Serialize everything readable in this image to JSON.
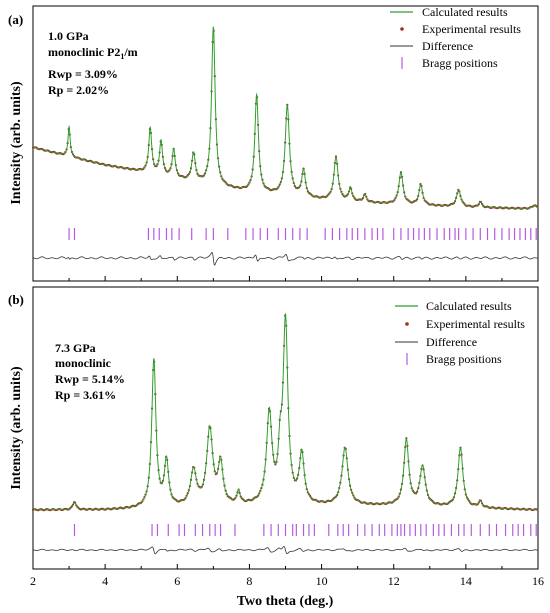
{
  "chart_data": [
    {
      "type": "line",
      "panel_label": "(a)",
      "annotations": [
        "1.0 GPa",
        "monoclinic P2",
        "1",
        "/m",
        "Rwp = 3.09%",
        "Rp = 2.02%"
      ],
      "ylabel": "Intensity (arb. units)",
      "xlim": [
        2,
        16
      ],
      "grid": false,
      "legend": {
        "placement": "top-right",
        "entries": [
          "Calculated results",
          "Experimental results",
          "Difference",
          "Bragg positions"
        ]
      },
      "series": [
        {
          "name": "Calculated results",
          "style": "line",
          "color": "#2e9e2e"
        },
        {
          "name": "Experimental results",
          "style": "dots",
          "color": "#a52a2a"
        },
        {
          "name": "Difference",
          "style": "line",
          "color": "#333333"
        },
        {
          "name": "Bragg positions",
          "style": "ticks",
          "color": "#b65be0"
        }
      ],
      "profile": {
        "background": [
          [
            2.0,
            33
          ],
          [
            3.0,
            28
          ],
          [
            4.0,
            23.5
          ],
          [
            5.0,
            20
          ],
          [
            6.0,
            16
          ],
          [
            7.0,
            12
          ],
          [
            8.0,
            9
          ],
          [
            9.0,
            7
          ],
          [
            10.0,
            5
          ],
          [
            12.0,
            2.5
          ],
          [
            14.0,
            1
          ],
          [
            16.0,
            0
          ]
        ],
        "peaks": [
          [
            3.0,
            16,
            0.035
          ],
          [
            5.25,
            24,
            0.05
          ],
          [
            5.55,
            18,
            0.05
          ],
          [
            5.9,
            15,
            0.05
          ],
          [
            6.45,
            15,
            0.06
          ],
          [
            7.0,
            85,
            0.06
          ],
          [
            8.2,
            52,
            0.06
          ],
          [
            9.05,
            48,
            0.07
          ],
          [
            9.5,
            14,
            0.06
          ],
          [
            10.4,
            23,
            0.07
          ],
          [
            10.8,
            7,
            0.05
          ],
          [
            11.2,
            4,
            0.05
          ],
          [
            12.2,
            17,
            0.07
          ],
          [
            12.75,
            11,
            0.06
          ],
          [
            13.8,
            9,
            0.07
          ],
          [
            14.4,
            3,
            0.05
          ],
          [
            15.9,
            2,
            0.07
          ]
        ],
        "ymax": 100
      },
      "bragg_positions": [
        3.0,
        3.15,
        5.2,
        5.35,
        5.5,
        5.7,
        5.85,
        6.05,
        6.4,
        6.8,
        7.0,
        7.4,
        7.9,
        8.1,
        8.3,
        8.5,
        8.8,
        9.0,
        9.2,
        9.4,
        9.6,
        10.1,
        10.3,
        10.5,
        10.7,
        10.85,
        11.0,
        11.2,
        11.4,
        11.55,
        11.7,
        12.0,
        12.2,
        12.4,
        12.55,
        12.7,
        12.85,
        13.0,
        13.2,
        13.4,
        13.55,
        13.7,
        13.8,
        14.0,
        14.2,
        14.4,
        14.6,
        14.8,
        15.0,
        15.2,
        15.35,
        15.5,
        15.65,
        15.8,
        15.95
      ]
    },
    {
      "type": "line",
      "panel_label": "(b)",
      "annotations": [
        "7.3 GPa",
        "monoclinic",
        "Rwp = 5.14%",
        "Rp = 3.61%"
      ],
      "ylabel": "Intensity (arb. units)",
      "xlabel": "Two theta (deg.)",
      "xlim": [
        2,
        16
      ],
      "xticks": [
        2,
        4,
        6,
        8,
        10,
        12,
        14,
        16
      ],
      "grid": false,
      "legend": {
        "placement": "top-right",
        "entries": [
          "Calculated results",
          "Experimental results",
          "Difference",
          "Bragg positions"
        ]
      },
      "series": [
        {
          "name": "Calculated results",
          "style": "line",
          "color": "#2e9e2e"
        },
        {
          "name": "Experimental results",
          "style": "dots",
          "color": "#a52a2a"
        },
        {
          "name": "Difference",
          "style": "line",
          "color": "#333333"
        },
        {
          "name": "Bragg positions",
          "style": "ticks",
          "color": "#b65be0"
        }
      ],
      "profile": {
        "background": [
          [
            2.0,
            1
          ],
          [
            4.0,
            1
          ],
          [
            5.0,
            1.5
          ],
          [
            8.0,
            3
          ],
          [
            10.0,
            3
          ],
          [
            12.0,
            3
          ],
          [
            14.0,
            2
          ],
          [
            16.0,
            1
          ]
        ],
        "peaks": [
          [
            3.15,
            4,
            0.05
          ],
          [
            5.35,
            72,
            0.07
          ],
          [
            5.7,
            22,
            0.07
          ],
          [
            6.45,
            17,
            0.1
          ],
          [
            6.9,
            37,
            0.1
          ],
          [
            7.2,
            20,
            0.08
          ],
          [
            7.7,
            6,
            0.05
          ],
          [
            8.55,
            44,
            0.09
          ],
          [
            8.85,
            20,
            0.06
          ],
          [
            9.0,
            88,
            0.08
          ],
          [
            9.45,
            24,
            0.08
          ],
          [
            10.65,
            28,
            0.1
          ],
          [
            12.35,
            32,
            0.08
          ],
          [
            12.8,
            19,
            0.09
          ],
          [
            13.85,
            29,
            0.08
          ],
          [
            14.4,
            3,
            0.06
          ]
        ],
        "ymax": 100
      },
      "bragg_positions": [
        3.15,
        5.3,
        5.45,
        5.75,
        6.05,
        6.2,
        6.5,
        6.7,
        6.9,
        7.05,
        7.2,
        7.6,
        8.4,
        8.6,
        8.8,
        9.0,
        9.2,
        9.3,
        9.5,
        9.65,
        9.8,
        10.2,
        10.45,
        10.6,
        10.75,
        11.0,
        11.2,
        11.4,
        11.6,
        11.75,
        11.95,
        12.1,
        12.2,
        12.3,
        12.45,
        12.6,
        12.75,
        12.9,
        13.1,
        13.25,
        13.4,
        13.6,
        13.8,
        13.95,
        14.15,
        14.4,
        14.65,
        14.85,
        15.1,
        15.3,
        15.45,
        15.6,
        15.8,
        15.95
      ]
    }
  ]
}
